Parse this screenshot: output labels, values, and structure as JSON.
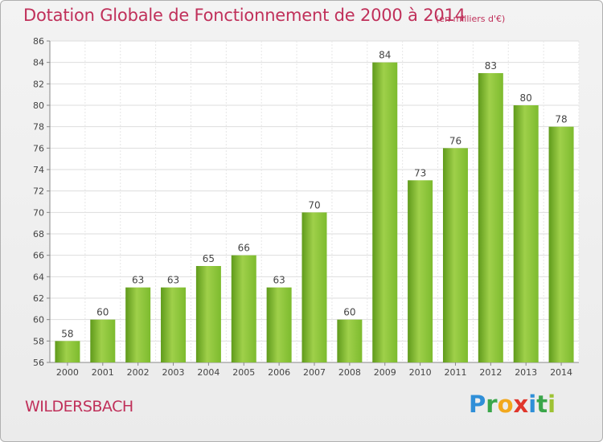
{
  "header": {
    "title": "Dotation Globale de Fonctionnement de 2000 à 2014",
    "unit": "(en milliers d'€)"
  },
  "footer": {
    "commune": "WILDERSBACH",
    "logo": [
      "P",
      "r",
      "o",
      "x",
      "i",
      "t",
      "i"
    ]
  },
  "chart_data": {
    "type": "bar",
    "title": "Dotation Globale de Fonctionnement de 2000 à 2014",
    "subtitle": "(en milliers d'€)",
    "xlabel": "",
    "ylabel": "",
    "categories": [
      "2000",
      "2001",
      "2002",
      "2003",
      "2004",
      "2005",
      "2006",
      "2007",
      "2008",
      "2009",
      "2010",
      "2011",
      "2012",
      "2013",
      "2014"
    ],
    "values": [
      58,
      60,
      63,
      63,
      65,
      66,
      63,
      70,
      60,
      84,
      73,
      76,
      83,
      80,
      78
    ],
    "ylim": [
      56,
      86
    ],
    "yticks": [
      56,
      58,
      60,
      62,
      64,
      66,
      68,
      70,
      72,
      74,
      76,
      78,
      80,
      82,
      84,
      86
    ],
    "grid": true,
    "bar_color": "#7dbb2e",
    "bar_color_light": "#9fd04a",
    "bar_color_dark": "#5f9a1b"
  }
}
